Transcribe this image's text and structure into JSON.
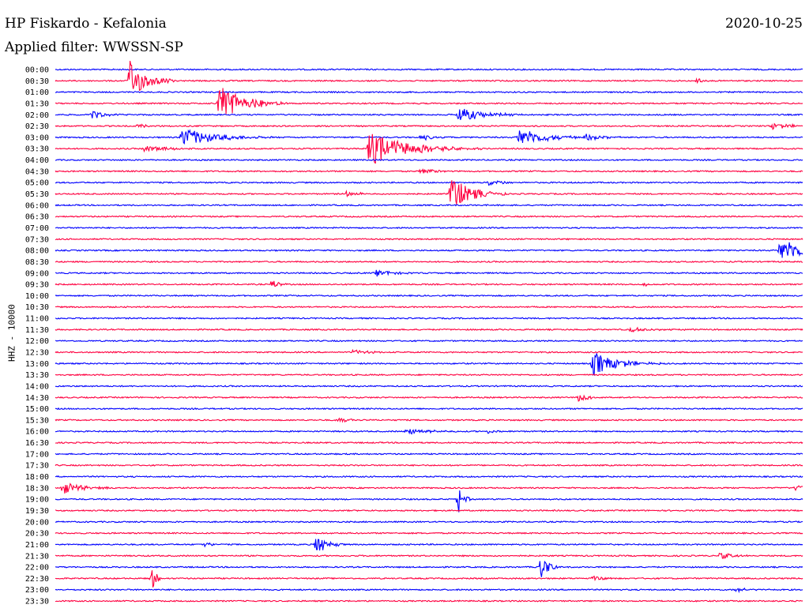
{
  "header": {
    "station": "HP Fiskardo - Kefalonia",
    "date": "2020-10-25",
    "filter": "Applied filter: WWSSN-SP"
  },
  "channel": "HHZ - 10000",
  "colors": {
    "odd": "#0000ff",
    "even": "#ff0040"
  },
  "rows": [
    "00:00",
    "00:30",
    "01:00",
    "01:30",
    "02:00",
    "02:30",
    "03:00",
    "03:30",
    "04:00",
    "04:30",
    "05:00",
    "05:30",
    "06:00",
    "06:30",
    "07:00",
    "07:30",
    "08:00",
    "08:30",
    "09:00",
    "09:30",
    "10:00",
    "10:30",
    "11:00",
    "11:30",
    "12:00",
    "12:30",
    "13:00",
    "13:30",
    "14:00",
    "14:30",
    "15:00",
    "15:30",
    "16:00",
    "16:30",
    "17:00",
    "17:30",
    "18:00",
    "18:30",
    "19:00",
    "19:30",
    "20:00",
    "20:30",
    "21:00",
    "21:30",
    "22:00",
    "22:30",
    "23:00",
    "23:30"
  ],
  "events": [
    {
      "row": 1,
      "pos": 0.1,
      "amp": 1.8,
      "dur": 0.02
    },
    {
      "row": 1,
      "pos": 0.86,
      "amp": 0.3,
      "dur": 0.005
    },
    {
      "row": 3,
      "pos": 0.22,
      "amp": 1.8,
      "dur": 0.03
    },
    {
      "row": 4,
      "pos": 0.05,
      "amp": 0.4,
      "dur": 0.015
    },
    {
      "row": 4,
      "pos": 0.54,
      "amp": 0.7,
      "dur": 0.03
    },
    {
      "row": 5,
      "pos": 0.11,
      "amp": 0.2,
      "dur": 0.015
    },
    {
      "row": 5,
      "pos": 0.96,
      "amp": 0.3,
      "dur": 0.025
    },
    {
      "row": 6,
      "pos": 0.17,
      "amp": 0.9,
      "dur": 0.04
    },
    {
      "row": 6,
      "pos": 0.49,
      "amp": 0.25,
      "dur": 0.02
    },
    {
      "row": 6,
      "pos": 0.62,
      "amp": 0.8,
      "dur": 0.035
    },
    {
      "row": 6,
      "pos": 0.71,
      "amp": 0.3,
      "dur": 0.02
    },
    {
      "row": 7,
      "pos": 0.12,
      "amp": 0.3,
      "dur": 0.03
    },
    {
      "row": 7,
      "pos": 0.42,
      "amp": 1.5,
      "dur": 0.05
    },
    {
      "row": 9,
      "pos": 0.49,
      "amp": 0.3,
      "dur": 0.02
    },
    {
      "row": 10,
      "pos": 0.58,
      "amp": 0.3,
      "dur": 0.015
    },
    {
      "row": 11,
      "pos": 0.53,
      "amp": 1.6,
      "dur": 0.025
    },
    {
      "row": 11,
      "pos": 0.39,
      "amp": 0.25,
      "dur": 0.015
    },
    {
      "row": 16,
      "pos": 0.97,
      "amp": 1.0,
      "dur": 0.04
    },
    {
      "row": 18,
      "pos": 0.43,
      "amp": 0.3,
      "dur": 0.02
    },
    {
      "row": 19,
      "pos": 0.29,
      "amp": 0.5,
      "dur": 0.008
    },
    {
      "row": 19,
      "pos": 0.79,
      "amp": 0.3,
      "dur": 0.008
    },
    {
      "row": 23,
      "pos": 0.77,
      "amp": 0.2,
      "dur": 0.03
    },
    {
      "row": 25,
      "pos": 0.4,
      "amp": 0.3,
      "dur": 0.015
    },
    {
      "row": 26,
      "pos": 0.72,
      "amp": 1.1,
      "dur": 0.03
    },
    {
      "row": 29,
      "pos": 0.7,
      "amp": 0.3,
      "dur": 0.02
    },
    {
      "row": 31,
      "pos": 0.38,
      "amp": 0.2,
      "dur": 0.015
    },
    {
      "row": 32,
      "pos": 0.47,
      "amp": 0.3,
      "dur": 0.025
    },
    {
      "row": 32,
      "pos": 0.58,
      "amp": 0.2,
      "dur": 0.006
    },
    {
      "row": 37,
      "pos": 0.01,
      "amp": 0.6,
      "dur": 0.025
    },
    {
      "row": 37,
      "pos": 0.99,
      "amp": 0.3,
      "dur": 0.02
    },
    {
      "row": 38,
      "pos": 0.54,
      "amp": 1.3,
      "dur": 0.006
    },
    {
      "row": 42,
      "pos": 0.35,
      "amp": 1.1,
      "dur": 0.012
    },
    {
      "row": 42,
      "pos": 0.2,
      "amp": 0.3,
      "dur": 0.008
    },
    {
      "row": 43,
      "pos": 0.89,
      "amp": 0.3,
      "dur": 0.015
    },
    {
      "row": 44,
      "pos": 0.65,
      "amp": 1.5,
      "dur": 0.008
    },
    {
      "row": 45,
      "pos": 0.13,
      "amp": 0.9,
      "dur": 0.006
    },
    {
      "row": 45,
      "pos": 0.72,
      "amp": 0.2,
      "dur": 0.015
    },
    {
      "row": 46,
      "pos": 0.91,
      "amp": 0.2,
      "dur": 0.015
    }
  ]
}
